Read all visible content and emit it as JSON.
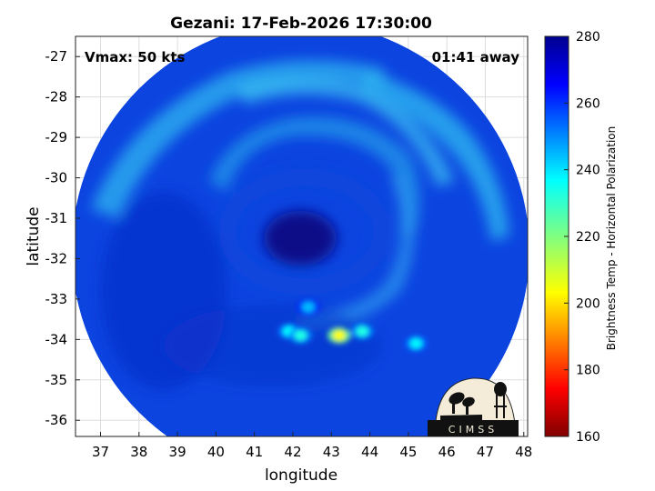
{
  "chart_data": {
    "type": "heatmap",
    "title": "Gezani: 17-Feb-2026 17:30:00",
    "xlabel": "longitude",
    "ylabel": "latitude",
    "xlim": [
      36.35,
      48.1
    ],
    "ylim": [
      -36.4,
      -26.5
    ],
    "xticks": [
      37,
      38,
      39,
      40,
      41,
      42,
      43,
      44,
      45,
      46,
      47,
      48
    ],
    "yticks": [
      -27,
      -28,
      -29,
      -30,
      -31,
      -32,
      -33,
      -34,
      -35,
      -36
    ],
    "grid": true,
    "annotations": {
      "vmax": "Vmax: 50 kts",
      "time_away": "01:41 away"
    },
    "storm_center": {
      "lon": 42.2,
      "lat": -31.5
    },
    "swath": {
      "center_lon": 42.2,
      "center_lat": -31.8,
      "radius_deg": 5.8
    },
    "colorbar": {
      "label": "Brightness Temp - Horizontal Polarization",
      "range": [
        160,
        280
      ],
      "ticks": [
        280,
        260,
        240,
        220,
        200,
        180,
        160
      ],
      "colormap": "jet"
    },
    "bright_spots": [
      {
        "lon": 41.9,
        "lat": -33.8,
        "tb": 235
      },
      {
        "lon": 42.2,
        "lat": -33.9,
        "tb": 232
      },
      {
        "lon": 43.2,
        "lat": -33.9,
        "tb": 205
      },
      {
        "lon": 43.8,
        "lat": -33.8,
        "tb": 232
      },
      {
        "lon": 45.2,
        "lat": -34.1,
        "tb": 236
      },
      {
        "lon": 42.4,
        "lat": -33.2,
        "tb": 243
      }
    ],
    "logo_text": "CIMSS"
  },
  "colors": {
    "background": "#0c44e0",
    "light_band": "#2fb5f0",
    "eye": "#0a0a88"
  }
}
